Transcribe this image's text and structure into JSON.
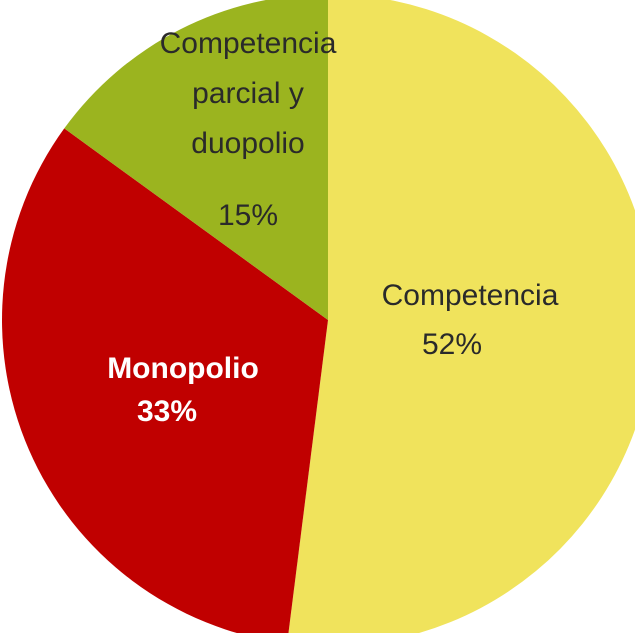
{
  "chart_data": {
    "type": "pie",
    "categories": [
      "Competencia",
      "Monopolio",
      "Competencia parcial y duopolio"
    ],
    "values": [
      52,
      33,
      15
    ],
    "value_labels": [
      "52%",
      "33%",
      "15%"
    ],
    "colors": [
      "#f0e35c",
      "#c00000",
      "#9bb41f"
    ]
  }
}
